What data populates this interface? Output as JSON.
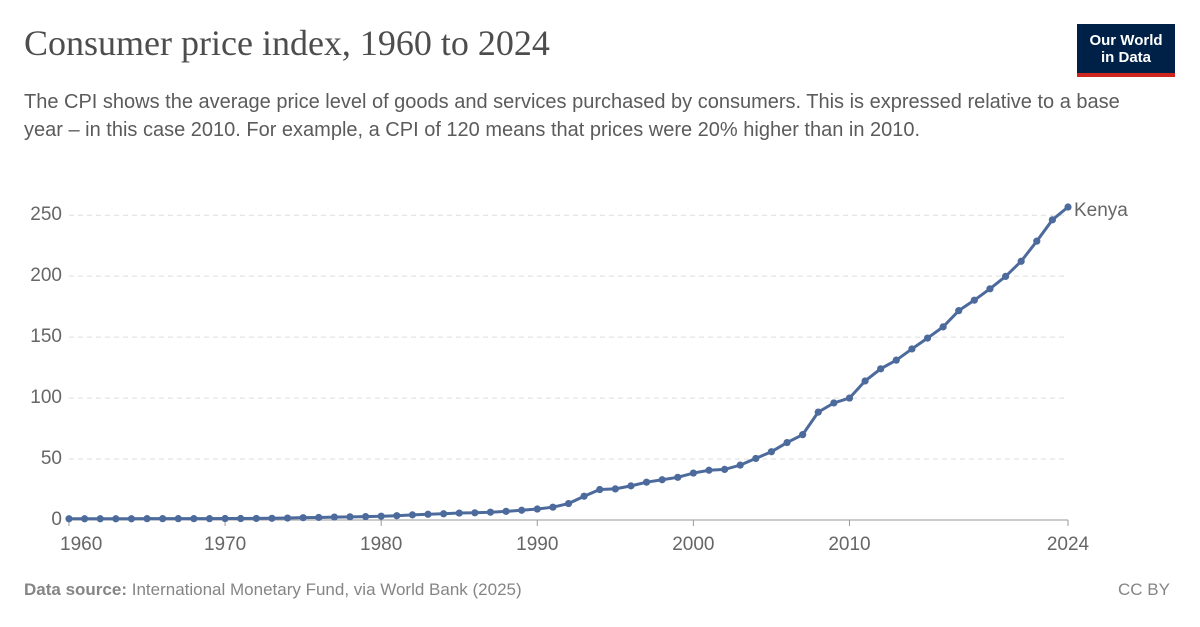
{
  "chart_data": {
    "type": "line",
    "title": "Consumer price index, 1960 to 2024",
    "subtitle": "The CPI shows the average price level of goods and services purchased by consumers. This is expressed relative to a base year – in this case 2010. For example, a CPI of 120 means that prices were 20% higher than in 2010.",
    "logo": [
      "Our World",
      "in Data"
    ],
    "source_label": "Data source:",
    "source": "International Monetary Fund, via World Bank (2025)",
    "license": "CC BY",
    "x": [
      1960,
      1961,
      1962,
      1963,
      1964,
      1965,
      1966,
      1967,
      1968,
      1969,
      1970,
      1971,
      1972,
      1973,
      1974,
      1975,
      1976,
      1977,
      1978,
      1979,
      1980,
      1981,
      1982,
      1983,
      1984,
      1985,
      1986,
      1987,
      1988,
      1989,
      1990,
      1991,
      1992,
      1993,
      1994,
      1995,
      1996,
      1997,
      1998,
      1999,
      2000,
      2001,
      2002,
      2003,
      2004,
      2005,
      2006,
      2007,
      2008,
      2009,
      2010,
      2011,
      2012,
      2013,
      2014,
      2015,
      2016,
      2017,
      2018,
      2019,
      2020,
      2021,
      2022,
      2023,
      2024
    ],
    "series": [
      {
        "name": "Kenya",
        "color": "#4c6a9c",
        "values": [
          1.0,
          1.0,
          1.0,
          1.0,
          1.0,
          1.1,
          1.1,
          1.1,
          1.1,
          1.1,
          1.2,
          1.2,
          1.3,
          1.4,
          1.6,
          1.9,
          2.1,
          2.4,
          2.6,
          2.8,
          3.1,
          3.5,
          4.2,
          4.7,
          5.1,
          5.7,
          5.9,
          6.4,
          7.1,
          8.0,
          9.0,
          10.5,
          13.5,
          19.5,
          25.0,
          25.5,
          28.0,
          31.0,
          33.0,
          35.0,
          38.5,
          40.8,
          41.5,
          45.0,
          50.5,
          56.0,
          63.5,
          70.0,
          88.5,
          96.0,
          100,
          114.0,
          124.0,
          131.1,
          140.3,
          149.2,
          158.4,
          171.7,
          180.3,
          189.6,
          199.8,
          212.2,
          228.7,
          246.2,
          256.7
        ]
      }
    ],
    "xlim": [
      1960,
      2024
    ],
    "xticks": [
      1960,
      1970,
      1980,
      1990,
      2000,
      2010,
      2024
    ],
    "ylim": [
      0,
      260
    ],
    "yticks": [
      0,
      50,
      100,
      150,
      200,
      250
    ],
    "grid": true
  }
}
